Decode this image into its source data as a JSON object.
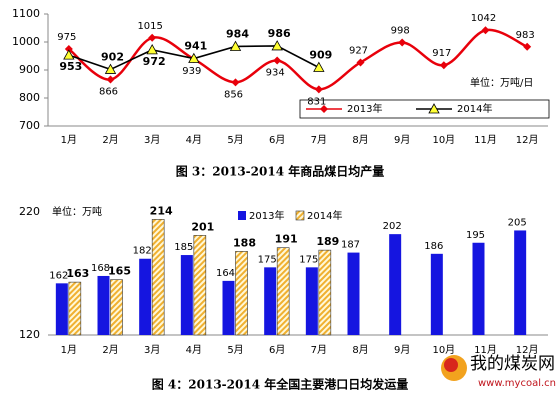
{
  "chart_data": [
    {
      "type": "line",
      "title": "图 3：2013-2014 年商品煤日均产量",
      "unit": "单位：万吨/日",
      "categories": [
        "1月",
        "2月",
        "3月",
        "4月",
        "5月",
        "6月",
        "7月",
        "8月",
        "9月",
        "10月",
        "11月",
        "12月"
      ],
      "series": [
        {
          "name": "2013年",
          "color": "#e8000b",
          "marker": "diamond",
          "smooth": true,
          "values": [
            975,
            866,
            1015,
            939,
            856,
            934,
            831,
            927,
            998,
            917,
            1042,
            983
          ]
        },
        {
          "name": "2014年",
          "color": "#000000",
          "marker": "triangle",
          "marker_color": "#ffff33",
          "smooth": false,
          "values": [
            953,
            902,
            972,
            941,
            984,
            986,
            909,
            null,
            null,
            null,
            null,
            null
          ]
        }
      ],
      "ylim": [
        700,
        1100
      ],
      "yticks": [
        700,
        800,
        900,
        1000,
        1100
      ],
      "grid": false
    },
    {
      "type": "bar",
      "title": "图 4：2013-2014 年全国主要港口日均发运量",
      "unit": "单位：万吨",
      "categories": [
        "1月",
        "2月",
        "3月",
        "4月",
        "5月",
        "6月",
        "7月",
        "8月",
        "9月",
        "10月",
        "11月",
        "12月"
      ],
      "series": [
        {
          "name": "2013年",
          "color": "#1515e0",
          "values": [
            162,
            168,
            182,
            185,
            164,
            175,
            175,
            187,
            202,
            186,
            195,
            205
          ]
        },
        {
          "name": "2014年",
          "color": "#f0b030",
          "hatched": true,
          "values": [
            163,
            165,
            214,
            201,
            188,
            191,
            189,
            null,
            null,
            null,
            null,
            null
          ]
        }
      ],
      "ylim": [
        120,
        220
      ],
      "yticks": [
        120,
        220
      ],
      "grid": false
    }
  ],
  "watermark": {
    "name": "我的煤炭网",
    "url": "www.mycoal.cn"
  }
}
